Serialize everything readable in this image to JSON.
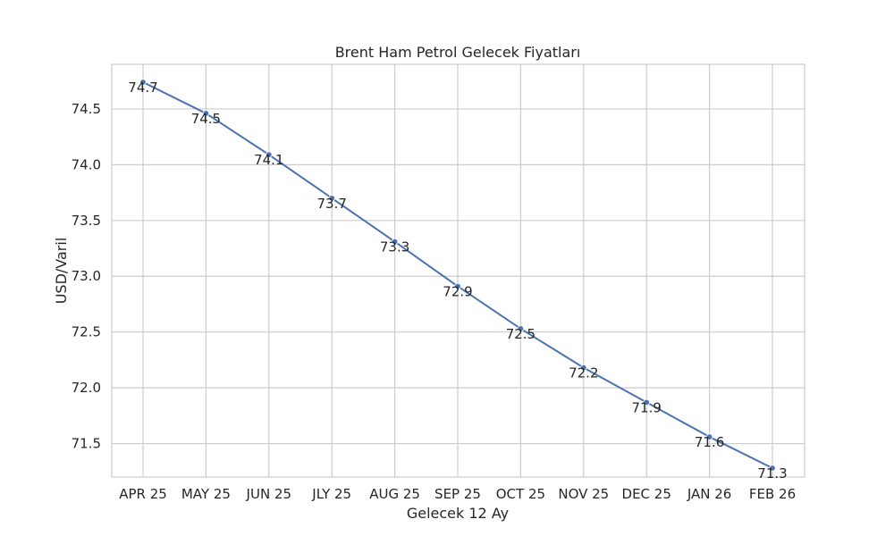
{
  "chart_data": {
    "type": "line",
    "title": "Brent Ham Petrol Gelecek Fiyatları",
    "xlabel": "Gelecek 12 Ay",
    "ylabel": "USD/Varil",
    "categories": [
      "APR 25",
      "MAY 25",
      "JUN 25",
      "JLY 25",
      "AUG 25",
      "SEP 25",
      "OCT 25",
      "NOV 25",
      "DEC 25",
      "JAN 26",
      "FEB 26"
    ],
    "values": [
      74.74,
      74.46,
      74.09,
      73.7,
      73.31,
      72.91,
      72.53,
      72.18,
      71.87,
      71.56,
      71.28
    ],
    "value_labels": [
      "74.7",
      "74.5",
      "74.1",
      "73.7",
      "73.3",
      "72.9",
      "72.5",
      "72.2",
      "71.9",
      "71.6",
      "71.3"
    ],
    "ylim": [
      71.2,
      74.9
    ],
    "yticks": [
      71.5,
      72.0,
      72.5,
      73.0,
      73.5,
      74.0,
      74.5
    ],
    "ytick_labels": [
      "71.5",
      "72.0",
      "72.5",
      "73.0",
      "73.5",
      "74.0",
      "74.5"
    ],
    "grid": true,
    "legend": "none",
    "line_color": "#4c72b0",
    "grid_color": "#cccccc",
    "background_color": "#ffffff"
  }
}
